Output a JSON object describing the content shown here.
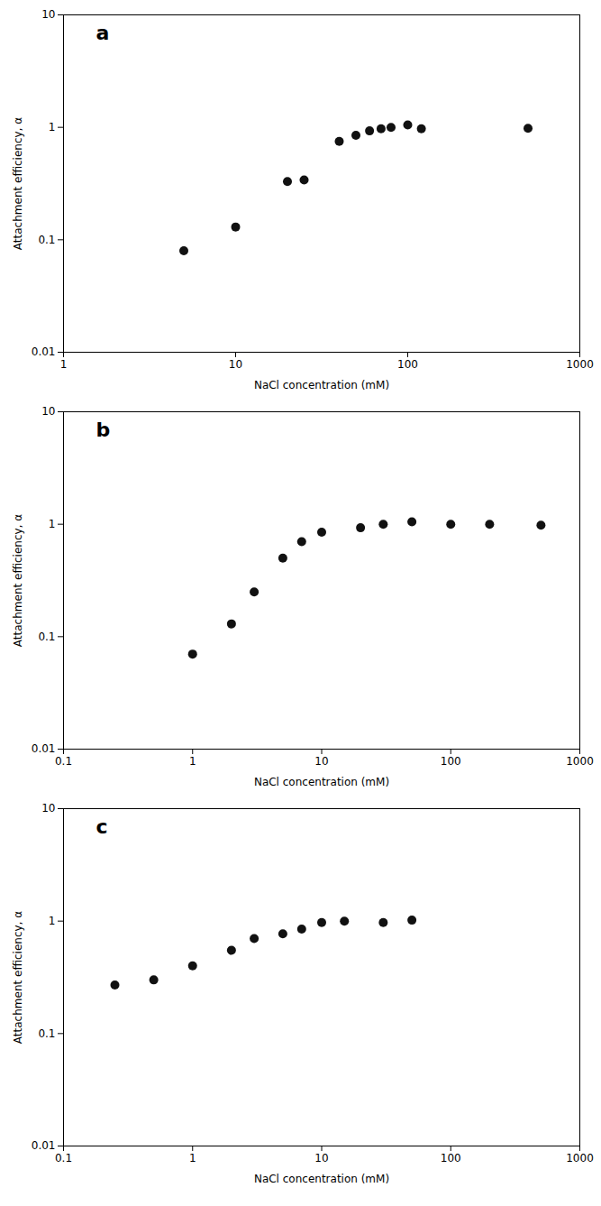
{
  "chart_data": [
    {
      "type": "scatter",
      "title": "a",
      "log": true,
      "grid": false,
      "color": "#111111",
      "xlabel": "NaCl concentration (mM)",
      "ylabel": "Attachment efficiency, α",
      "x": [
        5,
        10,
        20,
        25,
        40,
        50,
        60,
        70,
        80,
        100,
        120,
        500
      ],
      "values": [
        0.08,
        0.13,
        0.33,
        0.34,
        0.75,
        0.85,
        0.93,
        0.97,
        1.0,
        1.05,
        0.97,
        0.98
      ],
      "xlim": [
        1,
        1000
      ],
      "ylim": [
        0.01,
        10
      ],
      "xticks": [
        1,
        10,
        100,
        1000
      ],
      "yticks": [
        0.01,
        0.1,
        1,
        10
      ]
    },
    {
      "type": "scatter",
      "title": "b",
      "log": true,
      "grid": false,
      "color": "#111111",
      "xlabel": "NaCl concentration (mM)",
      "ylabel": "Attachment efficiency, α",
      "x": [
        1.0,
        2.0,
        3.0,
        5.0,
        7.0,
        10,
        20,
        30,
        50,
        100,
        200,
        500
      ],
      "values": [
        0.07,
        0.13,
        0.25,
        0.5,
        0.7,
        0.85,
        0.93,
        1.0,
        1.05,
        1.0,
        1.0,
        0.98
      ],
      "xlim": [
        0.1,
        1000
      ],
      "ylim": [
        0.01,
        10
      ],
      "xticks": [
        0.1,
        1,
        10,
        100,
        1000
      ],
      "yticks": [
        0.01,
        0.1,
        1,
        10
      ]
    },
    {
      "type": "scatter",
      "title": "c",
      "log": true,
      "grid": false,
      "color": "#111111",
      "xlabel": "NaCl concentration (mM)",
      "ylabel": "Attachment efficiency, α",
      "x": [
        0.25,
        0.5,
        1.0,
        2.0,
        3.0,
        5.0,
        7.0,
        10,
        15,
        30,
        50
      ],
      "values": [
        0.27,
        0.3,
        0.4,
        0.55,
        0.7,
        0.77,
        0.85,
        0.97,
        1.0,
        0.97,
        1.02
      ],
      "xlim": [
        0.1,
        1000
      ],
      "ylim": [
        0.01,
        10
      ],
      "xticks": [
        0.1,
        1,
        10,
        100,
        1000
      ],
      "yticks": [
        0.01,
        0.1,
        1,
        10
      ]
    }
  ]
}
